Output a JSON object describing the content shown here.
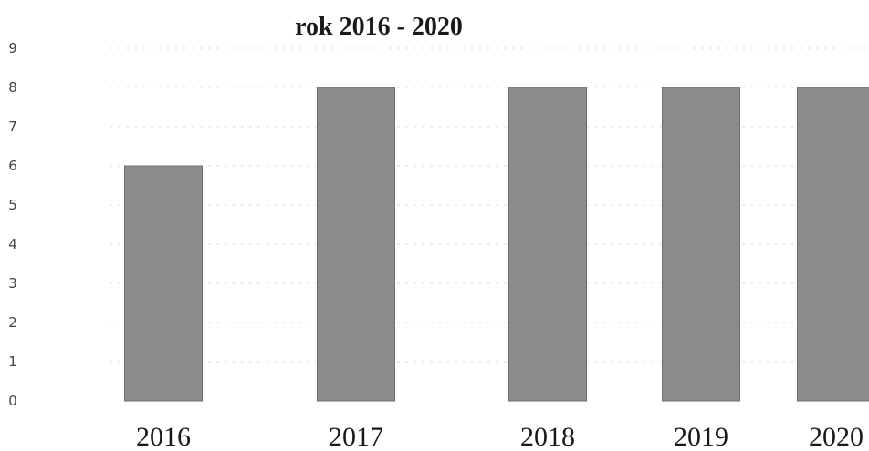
{
  "chart_data": {
    "type": "bar",
    "title": "rok 2016 - 2020",
    "xlabel": "",
    "ylabel": "",
    "categories": [
      "2016",
      "2017",
      "2018",
      "2019",
      "2020"
    ],
    "values": [
      6,
      8,
      8,
      8,
      8
    ],
    "ylim": [
      0,
      9
    ],
    "yticks": [
      "0",
      "1",
      "2",
      "3",
      "4",
      "5",
      "6",
      "7",
      "8",
      "9"
    ],
    "grid": true,
    "legend": "none",
    "bar_color": "#8a8c8a"
  }
}
